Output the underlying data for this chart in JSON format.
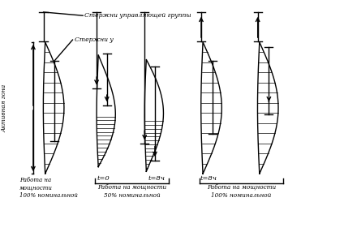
{
  "bg_color": "#ffffff",
  "fig_width": 4.24,
  "fig_height": 2.86,
  "dpi": 100,
  "label_top1": "Стержни управляющей группы",
  "label_top2": "Стержни у",
  "label_left_zone": "Активная зона",
  "label_bottom_left": "Работа на\nмощности\n100% номинальной",
  "label_t0": "t=0",
  "label_t8h_1": "t=8ч",
  "label_t8h_2": "t=8ч",
  "label_50pct": "Работа на мощности\n50% номинальной",
  "label_100pct": "Работа на мощности\n100% номинальной"
}
